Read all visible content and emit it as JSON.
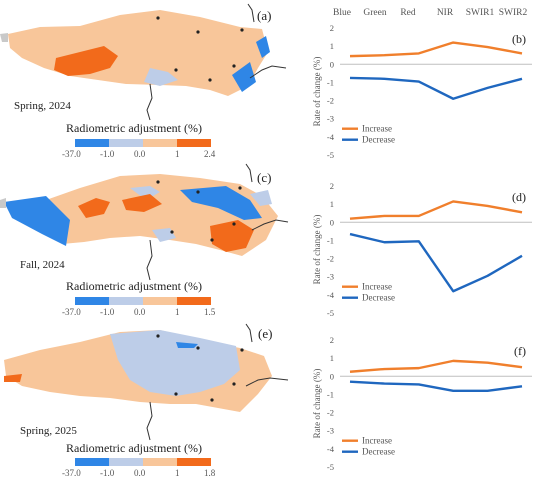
{
  "band_headers": [
    "Blue",
    "Green",
    "Red",
    "NIR",
    "SWIR1",
    "SWIR2"
  ],
  "colors": {
    "increase": "#f07f2c",
    "decrease": "#1f67bf",
    "map_land_positive": "#f8c69a",
    "map_land_negative": "#bdcde8",
    "map_strong_positive": "#f26a1b",
    "map_strong_negative": "#2f86e6",
    "map_outside": "#c9c9c9"
  },
  "maps": [
    {
      "letter": "(a)",
      "season": "Spring, 2024",
      "scale_title": "Radiometric adjustment (%)",
      "scale_ticks": [
        "-37.0",
        "-1.0",
        "0.0",
        "1",
        "2.4"
      ]
    },
    {
      "letter": "(c)",
      "season": "Fall, 2024",
      "scale_title": "Radiometric adjustment (%)",
      "scale_ticks": [
        "-37.0",
        "-1.0",
        "0.0",
        "1",
        "1.5"
      ]
    },
    {
      "letter": "(e)",
      "season": "Spring, 2025",
      "scale_title": "Radiometric adjustment (%)",
      "scale_ticks": [
        "-37.0",
        "-1.0",
        "0.0",
        "1",
        "1.8"
      ]
    }
  ],
  "chart_data": [
    {
      "type": "line",
      "panel": "(b)",
      "ylabel": "Rate of change (%)",
      "categories": [
        "Blue",
        "Green",
        "Red",
        "NIR",
        "SWIR1",
        "SWIR2"
      ],
      "ylim": [
        -5,
        2
      ],
      "yticks": [
        2,
        1,
        0,
        -1,
        -2,
        -3,
        -4,
        -5
      ],
      "grid": false,
      "legend": "bottom-left",
      "series": [
        {
          "name": "Increase",
          "values": [
            0.45,
            0.5,
            0.6,
            1.2,
            0.95,
            0.6
          ]
        },
        {
          "name": "Decrease",
          "values": [
            -0.75,
            -0.8,
            -0.95,
            -1.9,
            -1.3,
            -0.8
          ]
        }
      ]
    },
    {
      "type": "line",
      "panel": "(d)",
      "ylabel": "Rate of change (%)",
      "categories": [
        "Blue",
        "Green",
        "Red",
        "NIR",
        "SWIR1",
        "SWIR2"
      ],
      "ylim": [
        -5,
        2
      ],
      "yticks": [
        2,
        1,
        0,
        -1,
        -2,
        -3,
        -4,
        -5
      ],
      "grid": false,
      "legend": "bottom-left",
      "series": [
        {
          "name": "Increase",
          "values": [
            0.2,
            0.35,
            0.35,
            1.15,
            0.9,
            0.55
          ]
        },
        {
          "name": "Decrease",
          "values": [
            -0.65,
            -1.1,
            -1.05,
            -3.8,
            -2.95,
            -1.85
          ]
        }
      ]
    },
    {
      "type": "line",
      "panel": "(f)",
      "ylabel": "Rate of change (%)",
      "categories": [
        "Blue",
        "Green",
        "Red",
        "NIR",
        "SWIR1",
        "SWIR2"
      ],
      "ylim": [
        -5,
        2
      ],
      "yticks": [
        2,
        1,
        0,
        -1,
        -2,
        -3,
        -4,
        -5
      ],
      "grid": false,
      "legend": "bottom-left",
      "series": [
        {
          "name": "Increase",
          "values": [
            0.25,
            0.4,
            0.45,
            0.85,
            0.75,
            0.5
          ]
        },
        {
          "name": "Decrease",
          "values": [
            -0.3,
            -0.4,
            -0.45,
            -0.8,
            -0.8,
            -0.55
          ]
        }
      ]
    }
  ]
}
